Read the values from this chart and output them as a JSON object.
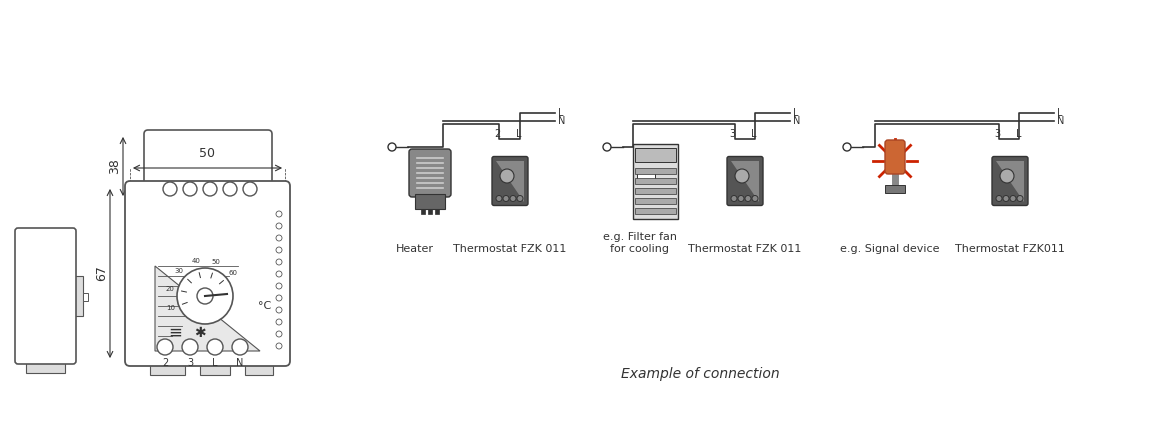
{
  "bg_color": "#ffffff",
  "line_color": "#555555",
  "dark_color": "#333333",
  "gray_color": "#888888",
  "light_gray": "#cccccc",
  "red_color": "#cc2200",
  "orange_color": "#cc6633",
  "dim_38": "38",
  "dim_50": "50",
  "dim_67": "67",
  "label_heater": "Heater",
  "label_thermo1": "Thermostat FZK 011",
  "label_fan": "e.g. Filter fan\nfor cooling",
  "label_thermo2": "Thermostat FZK 011",
  "label_signal": "e.g. Signal device",
  "label_thermo3": "Thermostat FZK011",
  "label_example": "Example of connection",
  "celsius": "°C",
  "label_2": "2",
  "label_3": "3",
  "label_L": "L",
  "label_N": "N",
  "label_heat_sym": "☹",
  "label_fan_sym": "★"
}
